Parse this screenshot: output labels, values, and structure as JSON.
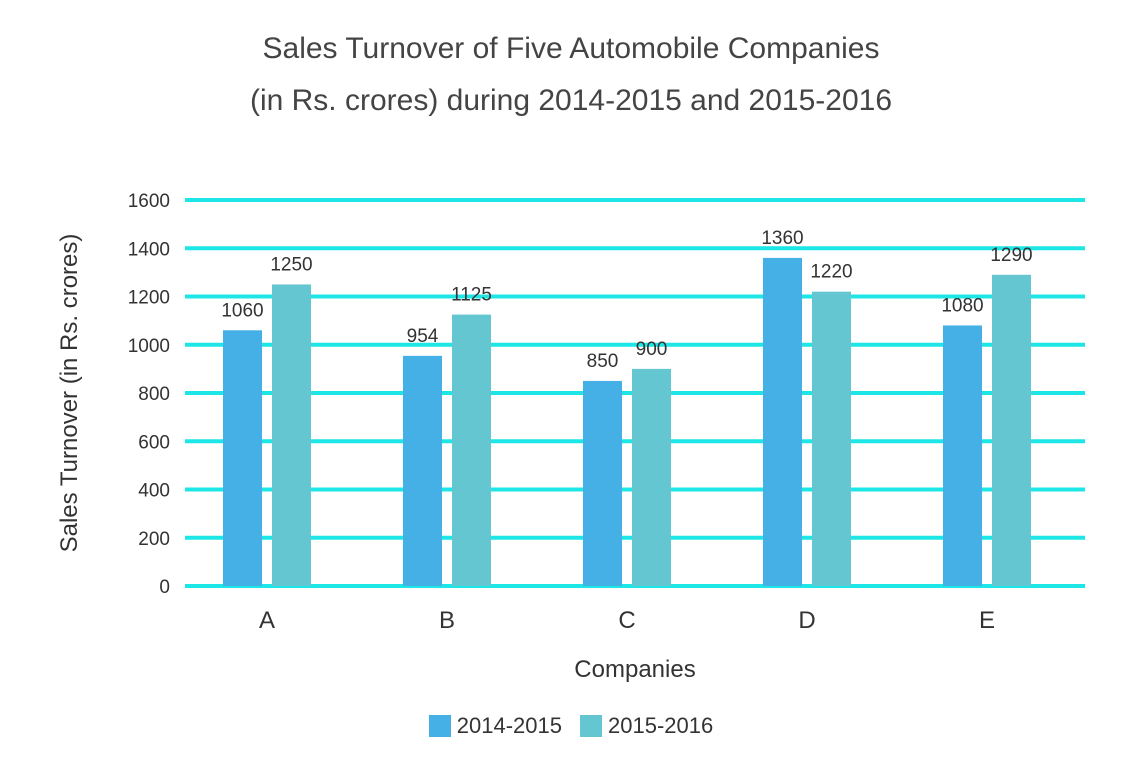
{
  "chart_data": {
    "type": "bar",
    "title": [
      "Sales Turnover of Five Automobile Companies",
      "(in Rs. crores) during 2014-2015 and 2015-2016"
    ],
    "xlabel": "Companies",
    "ylabel": "Sales Turnover (in Rs. crores)",
    "categories": [
      "A",
      "B",
      "C",
      "D",
      "E"
    ],
    "series": [
      {
        "name": "2014-2015",
        "color": "#45b0e5",
        "values": [
          1060,
          954,
          850,
          1360,
          1080
        ]
      },
      {
        "name": "2015-2016",
        "color": "#63c6d0",
        "values": [
          1250,
          1125,
          900,
          1220,
          1290
        ]
      }
    ],
    "ylim": [
      0,
      1600
    ],
    "yticks": [
      0,
      200,
      400,
      600,
      800,
      1000,
      1200,
      1400,
      1600
    ],
    "grid": true,
    "grid_color": "#1de6e6",
    "legend_position": "bottom"
  }
}
